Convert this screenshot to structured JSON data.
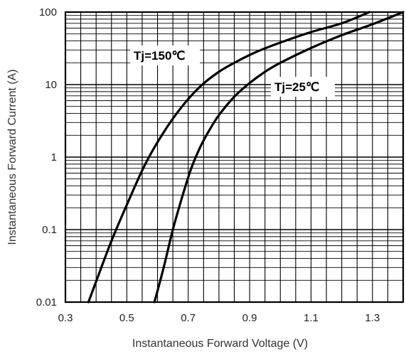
{
  "chart_data": {
    "type": "line",
    "title": "",
    "xlabel": "Instantaneous Forward Voltage (V)",
    "ylabel": "Instantaneous Forward Current (A)",
    "xlim": [
      0.3,
      1.4
    ],
    "ylim": [
      0.01,
      100
    ],
    "yscale": "log",
    "grid": true,
    "x_ticks": [
      0.3,
      0.5,
      0.7,
      0.9,
      1.1,
      1.3
    ],
    "x_tick_labels": [
      "0.3",
      "0.5",
      "0.7",
      "0.9",
      "1.1",
      "1.3"
    ],
    "y_ticks": [
      0.01,
      0.1,
      1,
      10,
      100
    ],
    "y_tick_labels": [
      "0.01",
      "0.1",
      "1",
      "10",
      "100"
    ],
    "series": [
      {
        "name": "Tj=150℃",
        "x": [
          0.375,
          0.41,
          0.45,
          0.5,
          0.56,
          0.62,
          0.68,
          0.74,
          0.8,
          0.86,
          0.92,
          1.0,
          1.1,
          1.2,
          1.29
        ],
        "y": [
          0.01,
          0.025,
          0.07,
          0.22,
          0.8,
          2.2,
          5,
          9.5,
          15,
          21,
          28,
          38,
          53,
          70,
          100
        ]
      },
      {
        "name": "Tj=25℃",
        "x": [
          0.59,
          0.62,
          0.65,
          0.68,
          0.71,
          0.74,
          0.77,
          0.8,
          0.85,
          0.9,
          0.95,
          1.0,
          1.1,
          1.2,
          1.3,
          1.4
        ],
        "y": [
          0.01,
          0.03,
          0.1,
          0.28,
          0.7,
          1.4,
          2.4,
          3.8,
          6.8,
          10.5,
          15,
          20,
          32,
          48,
          68,
          100
        ]
      }
    ]
  }
}
